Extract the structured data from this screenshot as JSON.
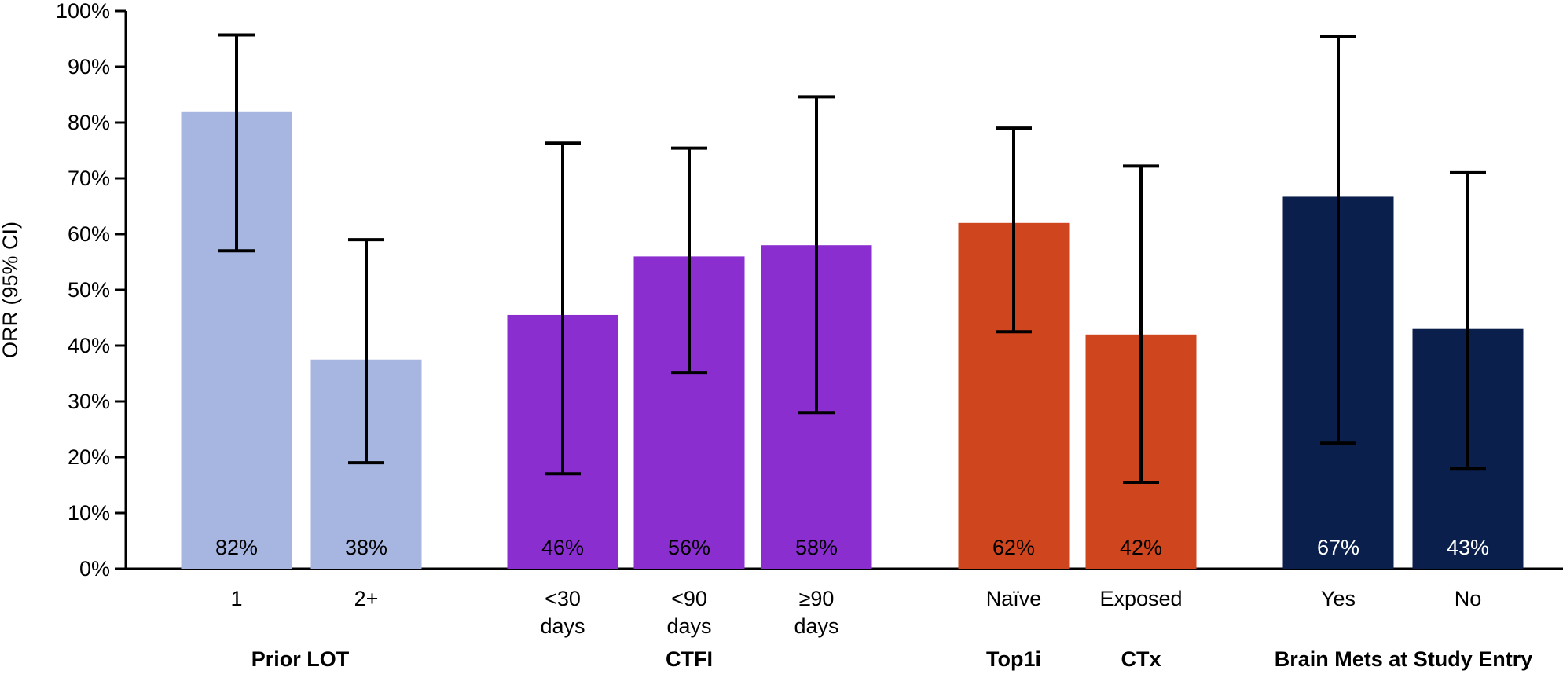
{
  "chart_data": {
    "type": "bar",
    "ylabel": "ORR (95% CI)",
    "ylim": [
      0,
      100
    ],
    "yticks": [
      "0%",
      "10%",
      "20%",
      "30%",
      "40%",
      "50%",
      "60%",
      "70%",
      "80%",
      "90%",
      "100%"
    ],
    "yticks_values": [
      0,
      10,
      20,
      30,
      40,
      50,
      60,
      70,
      80,
      90,
      100
    ],
    "groups": [
      "Prior LOT",
      "CTFI",
      "Top1i",
      "CTx",
      "Brain Mets at Study Entry"
    ],
    "bars": [
      {
        "category": [
          "1"
        ],
        "group": "Prior LOT",
        "value": 82,
        "ci": [
          57,
          95.7
        ],
        "label": "82%",
        "color": "#a7b6e1",
        "label_color": "#000000"
      },
      {
        "category": [
          "2+"
        ],
        "group": "Prior LOT",
        "value": 37.5,
        "ci": [
          19,
          59
        ],
        "label": "38%",
        "color": "#a7b6e1",
        "label_color": "#000000"
      },
      {
        "category": [
          "<30",
          "days"
        ],
        "group": "CTFI",
        "value": 45.5,
        "ci": [
          17,
          76.3
        ],
        "label": "46%",
        "color": "#8a2ecf",
        "label_color": "#000000"
      },
      {
        "category": [
          "<90",
          "days"
        ],
        "group": "CTFI",
        "value": 56,
        "ci": [
          35.2,
          75.4
        ],
        "label": "56%",
        "color": "#8a2ecf",
        "label_color": "#000000"
      },
      {
        "category": [
          "≥90",
          "days"
        ],
        "group": "CTFI",
        "value": 58,
        "ci": [
          28,
          84.6
        ],
        "label": "58%",
        "color": "#8a2ecf",
        "label_color": "#000000"
      },
      {
        "category": [
          "Naïve"
        ],
        "group": "Top1i",
        "value": 62,
        "ci": [
          42.5,
          79
        ],
        "label": "62%",
        "color": "#cf451e",
        "label_color": "#000000"
      },
      {
        "category": [
          "Exposed"
        ],
        "group": "CTx",
        "value": 42,
        "ci": [
          15.5,
          72.2
        ],
        "label": "42%",
        "color": "#cf451e",
        "label_color": "#000000"
      },
      {
        "category": [
          "Yes"
        ],
        "group": "Brain Mets at Study Entry",
        "value": 66.7,
        "ci": [
          22.5,
          95.5
        ],
        "label": "67%",
        "color": "#0a1f4b",
        "label_color": "#ffffff"
      },
      {
        "category": [
          "No"
        ],
        "group": "Brain Mets at Study Entry",
        "value": 43,
        "ci": [
          18,
          71
        ],
        "label": "43%",
        "color": "#0a1f4b",
        "label_color": "#ffffff"
      }
    ],
    "grid": false,
    "legend": "none"
  }
}
